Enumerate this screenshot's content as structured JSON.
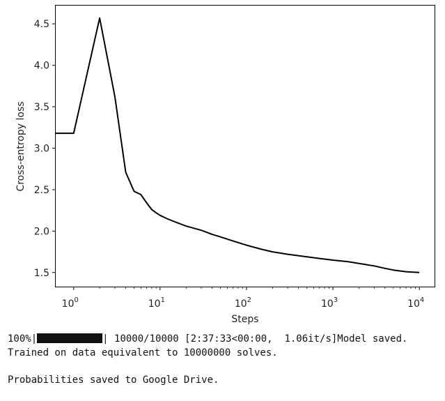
{
  "chart_data": {
    "type": "line",
    "title": "",
    "xlabel": "Steps",
    "ylabel": "Cross-entropy loss",
    "xscale": "log",
    "xlim": [
      0.62,
      15000
    ],
    "ylim": [
      1.33,
      4.72
    ],
    "grid": false,
    "x_ticks": [
      {
        "value": 1,
        "label": "10",
        "exp": "0"
      },
      {
        "value": 10,
        "label": "10",
        "exp": "1"
      },
      {
        "value": 100,
        "label": "10",
        "exp": "2"
      },
      {
        "value": 1000,
        "label": "10",
        "exp": "3"
      },
      {
        "value": 10000,
        "label": "10",
        "exp": "4"
      }
    ],
    "y_ticks": [
      "1.5",
      "2.0",
      "2.5",
      "3.0",
      "3.5",
      "4.0",
      "4.5"
    ],
    "series": [
      {
        "color": "#000000",
        "x": [
          0.62,
          1,
          2,
          3,
          4,
          5,
          6,
          7,
          8,
          9,
          10,
          12,
          15,
          20,
          30,
          40,
          50,
          70,
          100,
          150,
          200,
          300,
          500,
          700,
          1000,
          1500,
          2000,
          3000,
          4000,
          5000,
          7000,
          10000
        ],
        "y": [
          3.18,
          3.18,
          4.57,
          3.62,
          2.71,
          2.48,
          2.44,
          2.34,
          2.26,
          2.22,
          2.19,
          2.15,
          2.11,
          2.06,
          2.01,
          1.96,
          1.93,
          1.88,
          1.83,
          1.78,
          1.75,
          1.72,
          1.69,
          1.67,
          1.65,
          1.63,
          1.61,
          1.58,
          1.55,
          1.53,
          1.51,
          1.5
        ]
      }
    ]
  },
  "console": {
    "progress_percent": "100%",
    "progress_sep": "|",
    "progress_fraction": 1.0,
    "progress_rest": "| 10000/10000 [2:37:33<00:00,  1.06it/s]Model saved.",
    "line2": "Trained on data equivalent to 10000000 solves.",
    "line4": "Probabilities saved to Google Drive."
  }
}
